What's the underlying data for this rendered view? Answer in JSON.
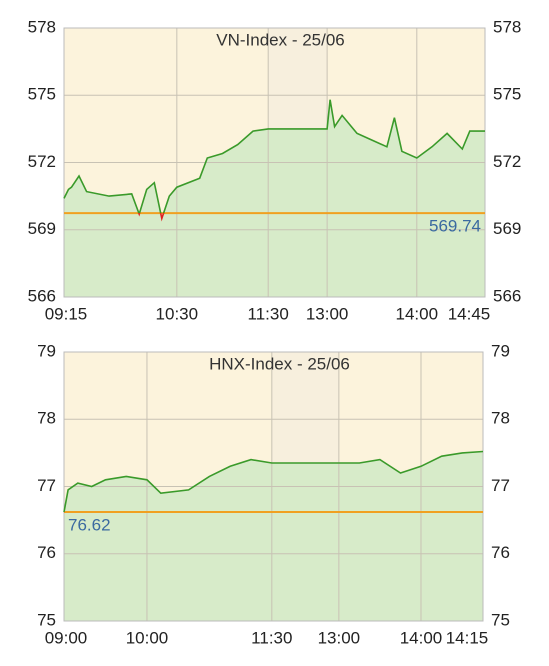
{
  "chart_data": [
    {
      "type": "line",
      "title": "VN-Index - 25/06",
      "x": [
        "09:15",
        "09:18",
        "09:20",
        "09:25",
        "09:30",
        "09:45",
        "10:00",
        "10:05",
        "10:10",
        "10:15",
        "10:20",
        "10:25",
        "10:30",
        "10:45",
        "10:50",
        "11:00",
        "11:10",
        "11:20",
        "11:30",
        "13:00",
        "13:02",
        "13:05",
        "13:10",
        "13:20",
        "13:30",
        "13:40",
        "13:45",
        "13:50",
        "14:00",
        "14:10",
        "14:20",
        "14:30",
        "14:35",
        "14:45"
      ],
      "values": [
        570.4,
        570.8,
        570.9,
        571.4,
        570.7,
        570.5,
        570.6,
        569.7,
        570.8,
        571.1,
        569.5,
        570.5,
        570.9,
        571.3,
        572.2,
        572.4,
        572.8,
        573.4,
        573.5,
        573.5,
        574.8,
        573.6,
        574.1,
        573.3,
        573.0,
        572.7,
        574.0,
        572.5,
        572.2,
        572.7,
        573.3,
        572.6,
        573.4,
        573.4
      ],
      "color": "#3a9a2a",
      "fill_color": "#d3eac6",
      "below_color": "#e02020",
      "reference": 569.74,
      "reference_color": "#f0a020",
      "ylim": [
        566,
        578
      ],
      "yticks": [
        566,
        569,
        572,
        575,
        578
      ],
      "xticks": [
        "09:15",
        "10:30",
        "11:30",
        "13:00",
        "14:00",
        "14:45"
      ],
      "break": [
        "11:30",
        "13:00"
      ],
      "grid": true
    },
    {
      "type": "line",
      "title": "HNX-Index - 25/06",
      "x": [
        "09:00",
        "09:03",
        "09:10",
        "09:20",
        "09:30",
        "09:45",
        "10:00",
        "10:10",
        "10:30",
        "10:45",
        "11:00",
        "11:15",
        "11:30",
        "13:00",
        "13:15",
        "13:30",
        "13:45",
        "14:00",
        "14:05",
        "14:10",
        "14:15"
      ],
      "values": [
        76.62,
        76.95,
        77.05,
        77.0,
        77.1,
        77.15,
        77.1,
        76.9,
        76.95,
        77.15,
        77.3,
        77.4,
        77.35,
        77.35,
        77.35,
        77.4,
        77.2,
        77.3,
        77.45,
        77.5,
        77.52
      ],
      "color": "#3a9a2a",
      "fill_color": "#d3eac6",
      "below_color": "#e02020",
      "reference": 76.62,
      "reference_color": "#f0a020",
      "ylim": [
        75,
        79
      ],
      "yticks": [
        75,
        76,
        77,
        78,
        79
      ],
      "xticks": [
        "09:00",
        "10:00",
        "11:30",
        "13:00",
        "14:00",
        "14:15"
      ],
      "break": [
        "11:30",
        "13:00"
      ],
      "grid": true
    }
  ]
}
